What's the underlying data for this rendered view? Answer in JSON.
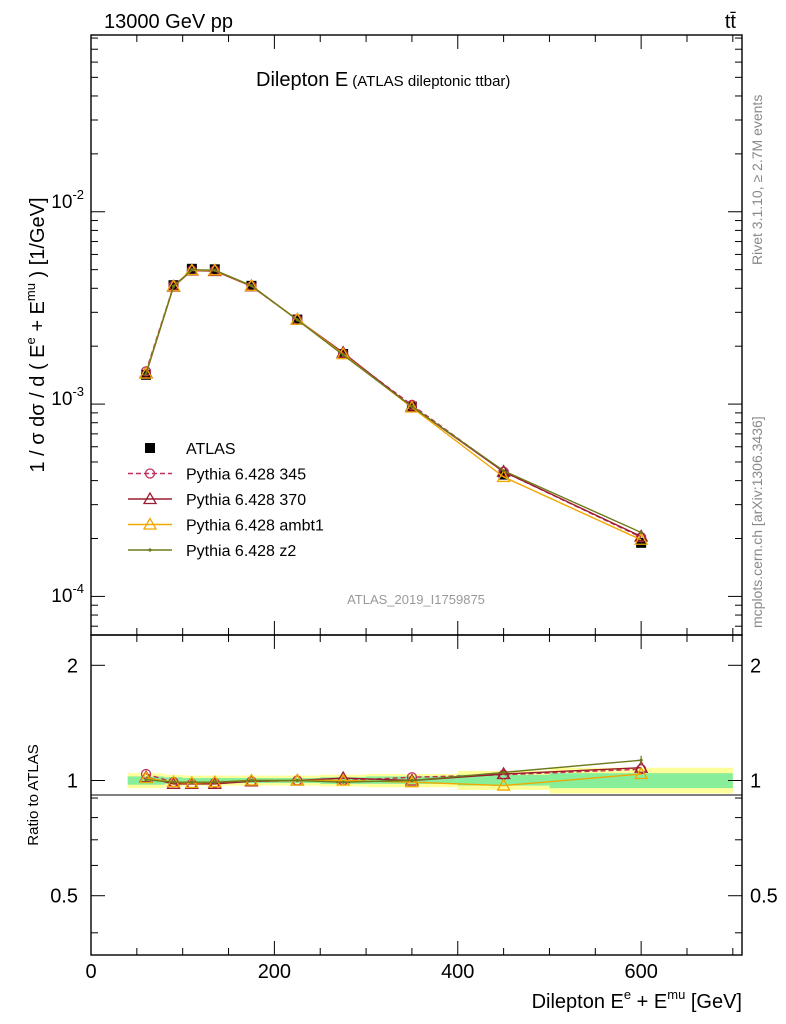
{
  "header": {
    "energy_label": "13000 GeV pp",
    "process_label": "tt̄"
  },
  "side_labels": {
    "rivet": "Rivet 3.1.10, ≥ 2.7M events",
    "mcplots": "mcplots.cern.ch [arXiv:1306.3436]"
  },
  "chart_data": [
    {
      "type": "line",
      "title": "Dilepton E",
      "subtitle": "(ATLAS dileptonic ttbar)",
      "ylabel": "1 / σ  dσ / d ( E^e + E^mu ) [1/GeV]",
      "yscale": "log",
      "ylim": [
        6.3e-05,
        0.083
      ],
      "xlim": [
        0,
        710
      ],
      "ytick_labels": [
        "10^-4",
        "10^-3",
        "10^-2"
      ],
      "watermark": "ATLAS_2019_I1759875",
      "legend_position": "left-middle",
      "x": [
        60,
        90,
        110,
        135,
        175,
        225,
        275,
        350,
        450,
        600
      ],
      "series": [
        {
          "name": "ATLAS",
          "color": "#000000",
          "marker": "square",
          "values": [
            0.00142,
            0.00415,
            0.00505,
            0.00502,
            0.00412,
            0.00275,
            0.00182,
            0.00097,
            0.00043,
            0.00019
          ]
        },
        {
          "name": "Pythia 6.428 345",
          "color": "#c0305a",
          "marker": "open-circle",
          "dash": "5,3",
          "values": [
            0.00148,
            0.00412,
            0.00495,
            0.00495,
            0.0041,
            0.00275,
            0.00182,
            0.00099,
            0.000445,
            0.000203
          ]
        },
        {
          "name": "Pythia 6.428 370",
          "color": "#9b1b30",
          "marker": "open-triangle",
          "values": [
            0.00145,
            0.00408,
            0.00495,
            0.00492,
            0.0041,
            0.00275,
            0.00185,
            0.00097,
            0.000445,
            0.000205
          ]
        },
        {
          "name": "Pythia 6.428 ambt1",
          "color": "#f0a800",
          "marker": "open-triangle",
          "values": [
            0.00144,
            0.0041,
            0.00497,
            0.00496,
            0.00412,
            0.00275,
            0.00182,
            0.00096,
            0.000418,
            0.000197
          ]
        },
        {
          "name": "Pythia 6.428 z2",
          "color": "#6e7a1a",
          "marker": "dot",
          "values": [
            0.00143,
            0.0041,
            0.005,
            0.00497,
            0.00413,
            0.00274,
            0.0018,
            0.00097,
            0.00045,
            0.000215
          ]
        }
      ]
    },
    {
      "type": "line",
      "ylabel": "Ratio to ATLAS",
      "xlabel": "Dilepton E^e + E^mu [GeV]",
      "xlim": [
        0,
        710
      ],
      "ylim": [
        0.35,
        2.4
      ],
      "ytick_labels": [
        "0.5",
        "1",
        "2"
      ],
      "xtick_labels": [
        "0",
        "200",
        "400",
        "600"
      ],
      "bands": [
        {
          "x": [
            40,
            80
          ],
          "inner": [
            0.975,
            1.025
          ],
          "outer": [
            0.955,
            1.045
          ]
        },
        {
          "x": [
            80,
            100
          ],
          "inner": [
            0.98,
            1.02
          ],
          "outer": [
            0.965,
            1.035
          ]
        },
        {
          "x": [
            100,
            120
          ],
          "inner": [
            0.985,
            1.015
          ],
          "outer": [
            0.97,
            1.03
          ]
        },
        {
          "x": [
            120,
            150
          ],
          "inner": [
            0.985,
            1.015
          ],
          "outer": [
            0.97,
            1.03
          ]
        },
        {
          "x": [
            150,
            200
          ],
          "inner": [
            0.985,
            1.015
          ],
          "outer": [
            0.97,
            1.03
          ]
        },
        {
          "x": [
            200,
            250
          ],
          "inner": [
            0.985,
            1.015
          ],
          "outer": [
            0.97,
            1.03
          ]
        },
        {
          "x": [
            250,
            300
          ],
          "inner": [
            0.98,
            1.02
          ],
          "outer": [
            0.965,
            1.035
          ]
        },
        {
          "x": [
            300,
            400
          ],
          "inner": [
            0.98,
            1.025
          ],
          "outer": [
            0.96,
            1.04
          ]
        },
        {
          "x": [
            400,
            500
          ],
          "inner": [
            0.97,
            1.035
          ],
          "outer": [
            0.945,
            1.06
          ]
        },
        {
          "x": [
            500,
            700
          ],
          "inner": [
            0.955,
            1.045
          ],
          "outer": [
            0.925,
            1.08
          ]
        }
      ],
      "x": [
        60,
        90,
        110,
        135,
        175,
        225,
        275,
        350,
        450,
        600
      ],
      "series": [
        {
          "name": "Pythia 6.428 345",
          "color": "#c0305a",
          "marker": "open-circle",
          "dash": "5,3",
          "values": [
            1.04,
            0.99,
            0.98,
            0.985,
            0.995,
            1.0,
            1.0,
            1.02,
            1.035,
            1.07
          ]
        },
        {
          "name": "Pythia 6.428 370",
          "color": "#9b1b30",
          "marker": "open-triangle",
          "values": [
            1.02,
            0.98,
            0.98,
            0.98,
            0.995,
            1.0,
            1.015,
            1.0,
            1.04,
            1.08
          ]
        },
        {
          "name": "Pythia 6.428 ambt1",
          "color": "#f0a800",
          "marker": "open-triangle",
          "values": [
            1.015,
            0.99,
            0.985,
            0.99,
            1.0,
            1.0,
            1.0,
            0.99,
            0.97,
            1.04
          ]
        },
        {
          "name": "Pythia 6.428 z2",
          "color": "#6e7a1a",
          "marker": "dot",
          "values": [
            1.005,
            0.99,
            0.99,
            0.99,
            1.0,
            1.0,
            0.99,
            1.0,
            1.05,
            1.13
          ]
        }
      ]
    }
  ]
}
